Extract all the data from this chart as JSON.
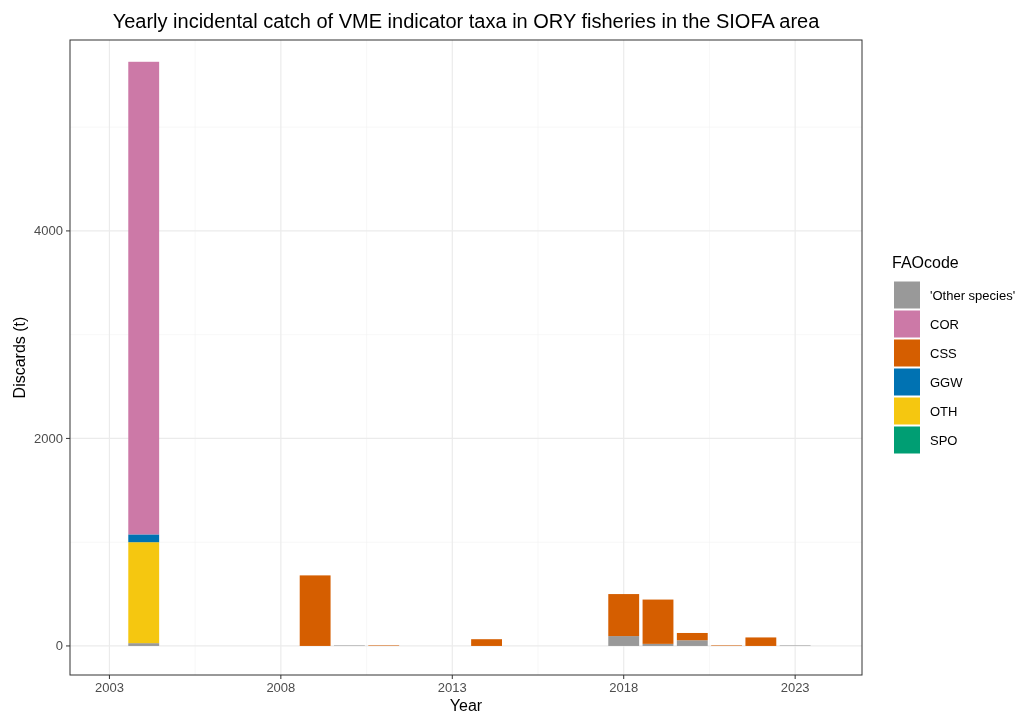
{
  "chart_data": {
    "type": "bar",
    "stacked": true,
    "title": "Yearly incidental catch of VME indicator taxa in ORY fisheries in the SIOFA area",
    "xlabel": "Year",
    "ylabel": "Discards (t)",
    "legend_title": "FAOcode",
    "legend": "right",
    "grid": true,
    "x": [
      2004,
      2009,
      2010,
      2011,
      2014,
      2018,
      2019,
      2020,
      2021,
      2022,
      2023
    ],
    "xlim": [
      2001.85,
      2024.95
    ],
    "xticks": [
      2003,
      2008,
      2013,
      2018,
      2023
    ],
    "ylim": [
      -280,
      5840
    ],
    "yticks": [
      0,
      2000,
      4000
    ],
    "series": [
      {
        "name": "'Other species'",
        "color": "#999999",
        "values": [
          27,
          null,
          5,
          null,
          null,
          95,
          20,
          55,
          null,
          null,
          5
        ]
      },
      {
        "name": "SPO",
        "color": "#009e73",
        "values": [
          null,
          null,
          null,
          null,
          null,
          null,
          null,
          null,
          null,
          null,
          null
        ]
      },
      {
        "name": "OTH",
        "color": "#f5c710",
        "values": [
          973,
          null,
          null,
          null,
          null,
          null,
          null,
          null,
          null,
          null,
          null
        ]
      },
      {
        "name": "GGW",
        "color": "#0072b2",
        "values": [
          75,
          null,
          null,
          null,
          null,
          null,
          null,
          null,
          null,
          null,
          null
        ]
      },
      {
        "name": "CSS",
        "color": "#d55e00",
        "values": [
          null,
          680,
          null,
          5,
          65,
          405,
          427,
          70,
          5,
          82,
          null
        ]
      },
      {
        "name": "COR",
        "color": "#cc79a7",
        "values": [
          4555,
          null,
          null,
          null,
          null,
          null,
          null,
          null,
          null,
          null,
          null
        ]
      }
    ]
  }
}
